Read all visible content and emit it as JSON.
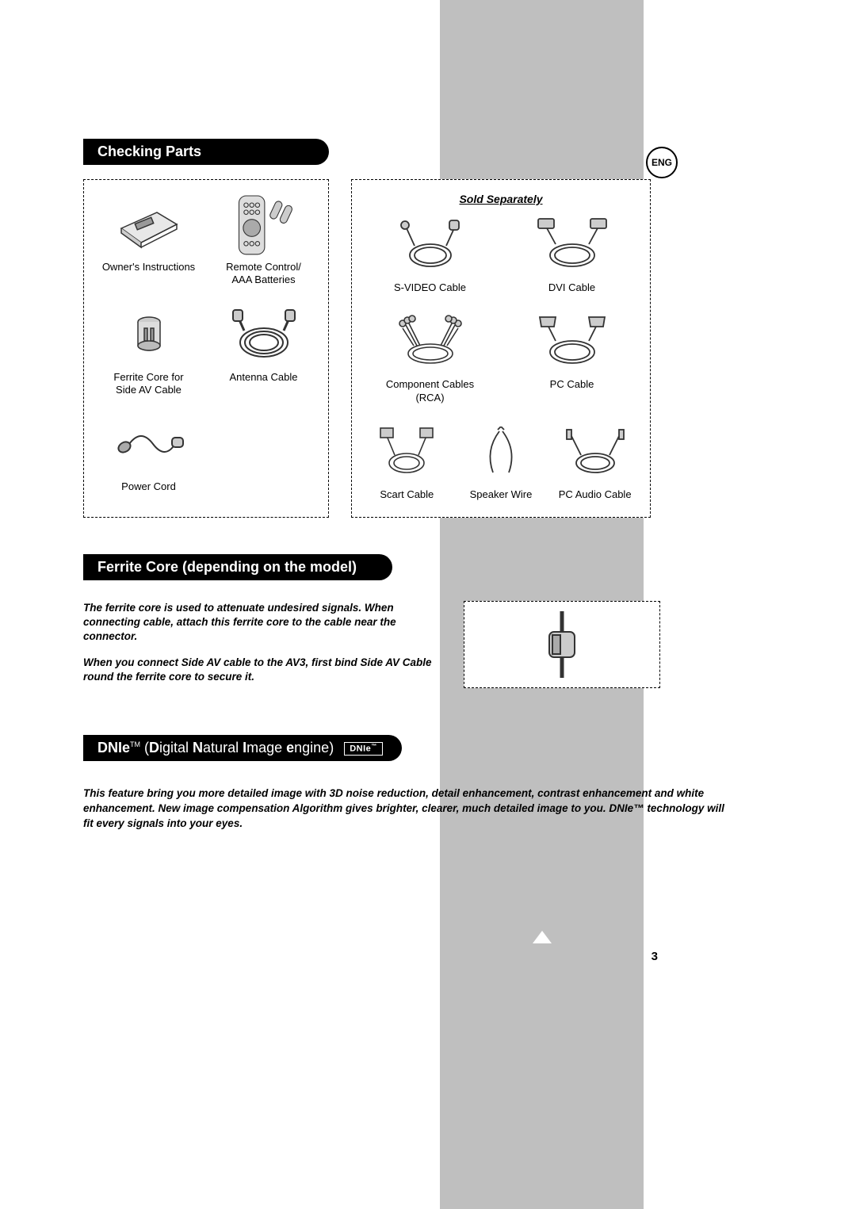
{
  "lang_badge": "ENG",
  "page_number": "3",
  "sections": {
    "checking_parts": {
      "title": "Checking Parts",
      "included": [
        {
          "label": "Owner's Instructions"
        },
        {
          "label": "Remote Control/\nAAA Batteries"
        },
        {
          "label": "Ferrite Core for\nSide AV Cable"
        },
        {
          "label": "Antenna Cable"
        },
        {
          "label": "Power Cord"
        }
      ],
      "sold_separately_title": "Sold Separately",
      "sold_separately": [
        {
          "label": "S-VIDEO Cable"
        },
        {
          "label": "DVI Cable"
        },
        {
          "label": "Component Cables\n(RCA)"
        },
        {
          "label": "PC Cable"
        },
        {
          "label": "Scart Cable"
        },
        {
          "label": "Speaker Wire"
        },
        {
          "label": "PC Audio Cable"
        }
      ]
    },
    "ferrite": {
      "title": "Ferrite Core (depending on the model)",
      "p1": "The ferrite core is used to attenuate undesired signals. When connecting cable, attach this ferrite core to the cable near the connector.",
      "p2": "When you connect Side AV cable to the AV3, first bind Side AV Cable round the ferrite core to secure it."
    },
    "dnie": {
      "title_prefix": "DNIe",
      "title_tm": "TM",
      "title_rest_parts": {
        "d": "D",
        "t1": "igital ",
        "n": "N",
        "t2": "atural ",
        "i": "I",
        "t3": "mage ",
        "e": "e",
        "t4": "ngine"
      },
      "logo_text": "DNIe",
      "body": "This feature bring you more detailed image with 3D noise reduction, detail enhancement, contrast enhancement and white enhancement. New image compensation Algorithm gives brighter, clearer, much detailed image to you. DNIe™ technology will fit every signals into your eyes."
    }
  },
  "colors": {
    "band": "#bfbfbf",
    "pill_bg": "#000000",
    "pill_fg": "#ffffff",
    "border": "#000000"
  }
}
